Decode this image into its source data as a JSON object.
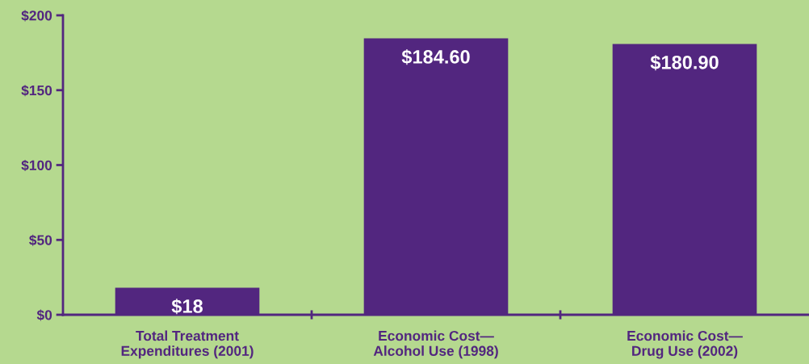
{
  "chart_data": {
    "type": "bar",
    "categories": [
      "Total Treatment\nExpenditures (2001)",
      "Economic Cost—\nAlcohol Use (1998)",
      "Economic Cost—\nDrug Use (2002)"
    ],
    "values": [
      18,
      184.6,
      180.9
    ],
    "value_labels": [
      "$18",
      "$184.60",
      "$180.90"
    ],
    "color": "#52267f",
    "ylim": [
      0,
      200
    ],
    "yticks": [
      {
        "value": 0,
        "label": "$0"
      },
      {
        "value": 50,
        "label": "$50"
      },
      {
        "value": 100,
        "label": "$100"
      },
      {
        "value": 150,
        "label": "$150"
      },
      {
        "value": 200,
        "label": "$200"
      }
    ],
    "grid": false,
    "legend": false
  }
}
